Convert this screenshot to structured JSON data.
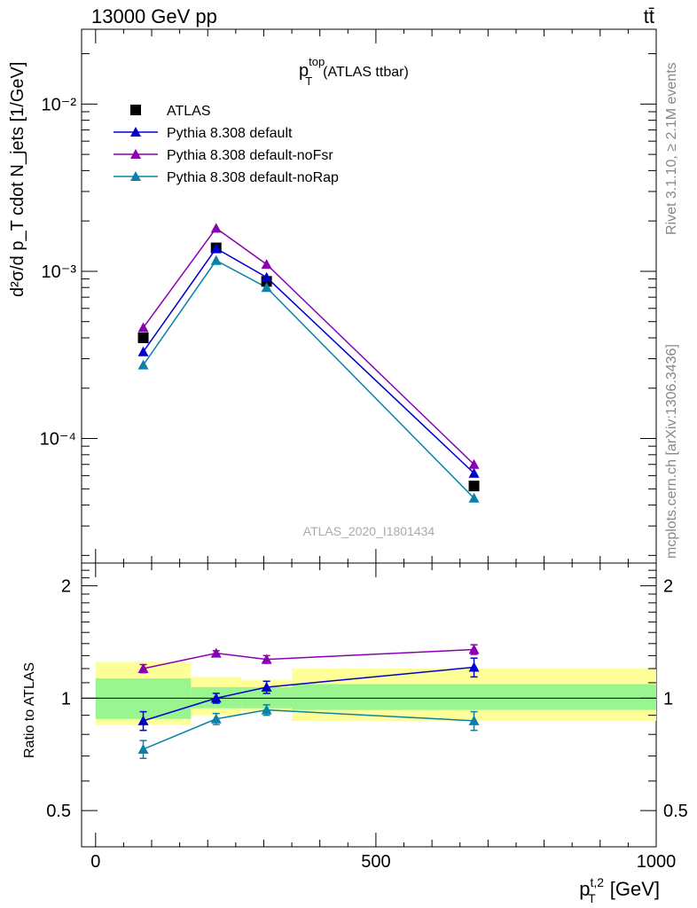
{
  "header": {
    "left": "13000 GeV pp",
    "right": "tt̄"
  },
  "title": {
    "main": "p",
    "sup": "top",
    "sub": "T",
    "rest": "(ATLAS ttbar)"
  },
  "side_labels": {
    "rivet": "Rivet 3.1.10, ≥ 2.1M events",
    "mcplots": "mcplots.cern.ch [arXiv:1306.3436]"
  },
  "watermark": "ATLAS_2020_I1801434",
  "colors": {
    "data": "#000000",
    "default": "#0000cc",
    "noFsr": "#8b00b0",
    "noRap": "#0a82a8",
    "band_inner": "#99f58f",
    "band_outer": "#ffff99"
  },
  "chart_data": [
    {
      "type": "line",
      "panel": "main",
      "ylabel": "d²σ/d p_T cdot N_jets [1/GeV]",
      "yscale": "log",
      "xlim": [
        -25,
        1000
      ],
      "ylim": [
        1.8e-05,
        0.028
      ],
      "y_ticklabels": [
        "10⁻⁴",
        "10⁻³",
        "10⁻²"
      ],
      "x": [
        85,
        215,
        305,
        675
      ],
      "series": [
        {
          "name": "ATLAS",
          "marker": "square",
          "values": [
            0.0004,
            0.00138,
            0.00087,
            5.2e-05
          ]
        },
        {
          "name": "Pythia 8.308 default",
          "marker": "triangle",
          "values": [
            0.00033,
            0.00137,
            0.00092,
            6.2e-05
          ]
        },
        {
          "name": "Pythia 8.308 default-noFsr",
          "marker": "triangle",
          "values": [
            0.00046,
            0.00181,
            0.0011,
            7e-05
          ]
        },
        {
          "name": "Pythia 8.308 default-noRap",
          "marker": "triangle",
          "values": [
            0.000275,
            0.00116,
            0.0008,
            4.4e-05
          ]
        }
      ],
      "legend_position": "top-left"
    },
    {
      "type": "line",
      "panel": "ratio",
      "xlabel": "p_T^{t,2} [GeV]",
      "ylabel": "Ratio to ATLAS",
      "xlim": [
        -25,
        1000
      ],
      "ylim": [
        0.4,
        2.3
      ],
      "x_ticks": [
        0,
        500,
        1000
      ],
      "y_ticks": [
        0.5,
        1,
        2
      ],
      "x": [
        85,
        215,
        305,
        675
      ],
      "series": [
        {
          "name": "Pythia 8.308 default",
          "values": [
            0.87,
            1.0,
            1.07,
            1.21
          ],
          "errors": [
            0.05,
            0.03,
            0.04,
            0.07
          ]
        },
        {
          "name": "Pythia 8.308 default-noFsr",
          "values": [
            1.2,
            1.32,
            1.27,
            1.35
          ],
          "errors": [
            0.03,
            0.02,
            0.03,
            0.04
          ]
        },
        {
          "name": "Pythia 8.308 default-noRap",
          "values": [
            0.73,
            0.88,
            0.93,
            0.87
          ],
          "errors": [
            0.04,
            0.03,
            0.03,
            0.05
          ]
        }
      ],
      "bands": [
        {
          "xmin": 0,
          "xmax": 170,
          "inner": [
            0.88,
            1.13
          ],
          "outer": [
            0.85,
            1.25
          ]
        },
        {
          "xmin": 170,
          "xmax": 260,
          "inner": [
            0.94,
            1.07
          ],
          "outer": [
            0.9,
            1.14
          ]
        },
        {
          "xmin": 260,
          "xmax": 350,
          "inner": [
            0.94,
            1.07
          ],
          "outer": [
            0.92,
            1.12
          ]
        },
        {
          "xmin": 350,
          "xmax": 1000,
          "inner": [
            0.93,
            1.09
          ],
          "outer": [
            0.87,
            1.2
          ]
        }
      ],
      "reference": 1
    }
  ]
}
